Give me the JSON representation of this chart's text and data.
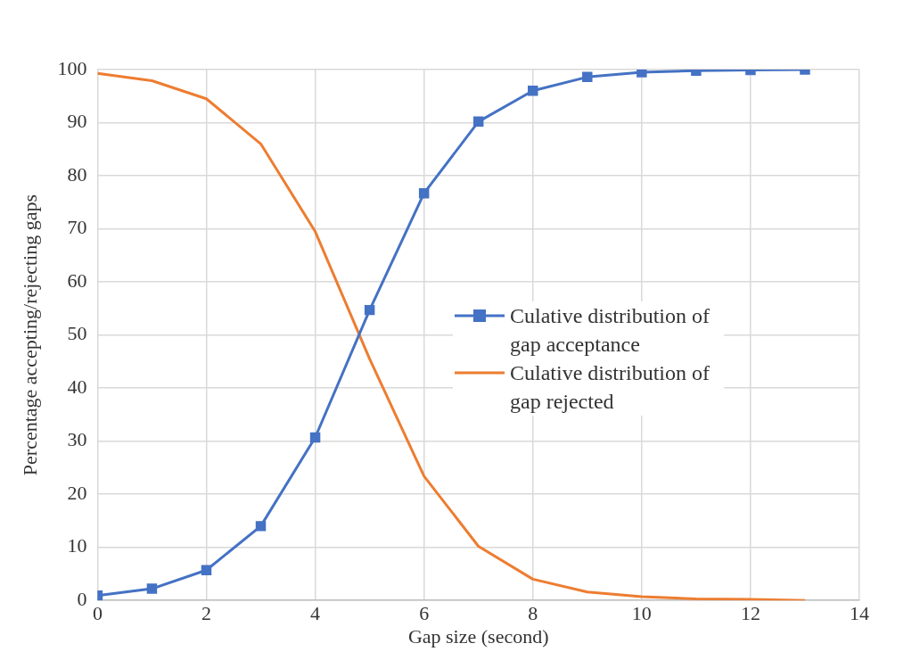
{
  "chart_data": {
    "type": "line",
    "xlabel": "Gap size (second)",
    "ylabel": "Percentage accepting/rejecting gaps",
    "x": [
      0,
      1,
      2,
      3,
      4,
      5,
      6,
      7,
      8,
      9,
      10,
      11,
      12,
      13
    ],
    "series": [
      {
        "name": "Culative distribution of gap acceptance",
        "color": "#4472c4",
        "marker": "square",
        "values": [
          0.9,
          2.2,
          5.7,
          14,
          30.7,
          54.7,
          76.7,
          90.2,
          96,
          98.6,
          99.5,
          99.8,
          99.9,
          100
        ]
      },
      {
        "name": "Culative distribution of gap rejected",
        "color": "#ed7d31",
        "marker": "none",
        "values": [
          99.3,
          97.9,
          94.5,
          86,
          69.5,
          45.5,
          23.4,
          10.2,
          4,
          1.6,
          0.7,
          0.3,
          0.2,
          0
        ]
      }
    ],
    "xlim": [
      0,
      14
    ],
    "xticks": [
      0,
      2,
      4,
      6,
      8,
      10,
      12,
      14
    ],
    "ylim": [
      0,
      100
    ],
    "yticks": [
      0,
      10,
      20,
      30,
      40,
      50,
      60,
      70,
      80,
      90,
      100
    ],
    "grid": true,
    "legend": "right",
    "line_style": "solid"
  }
}
